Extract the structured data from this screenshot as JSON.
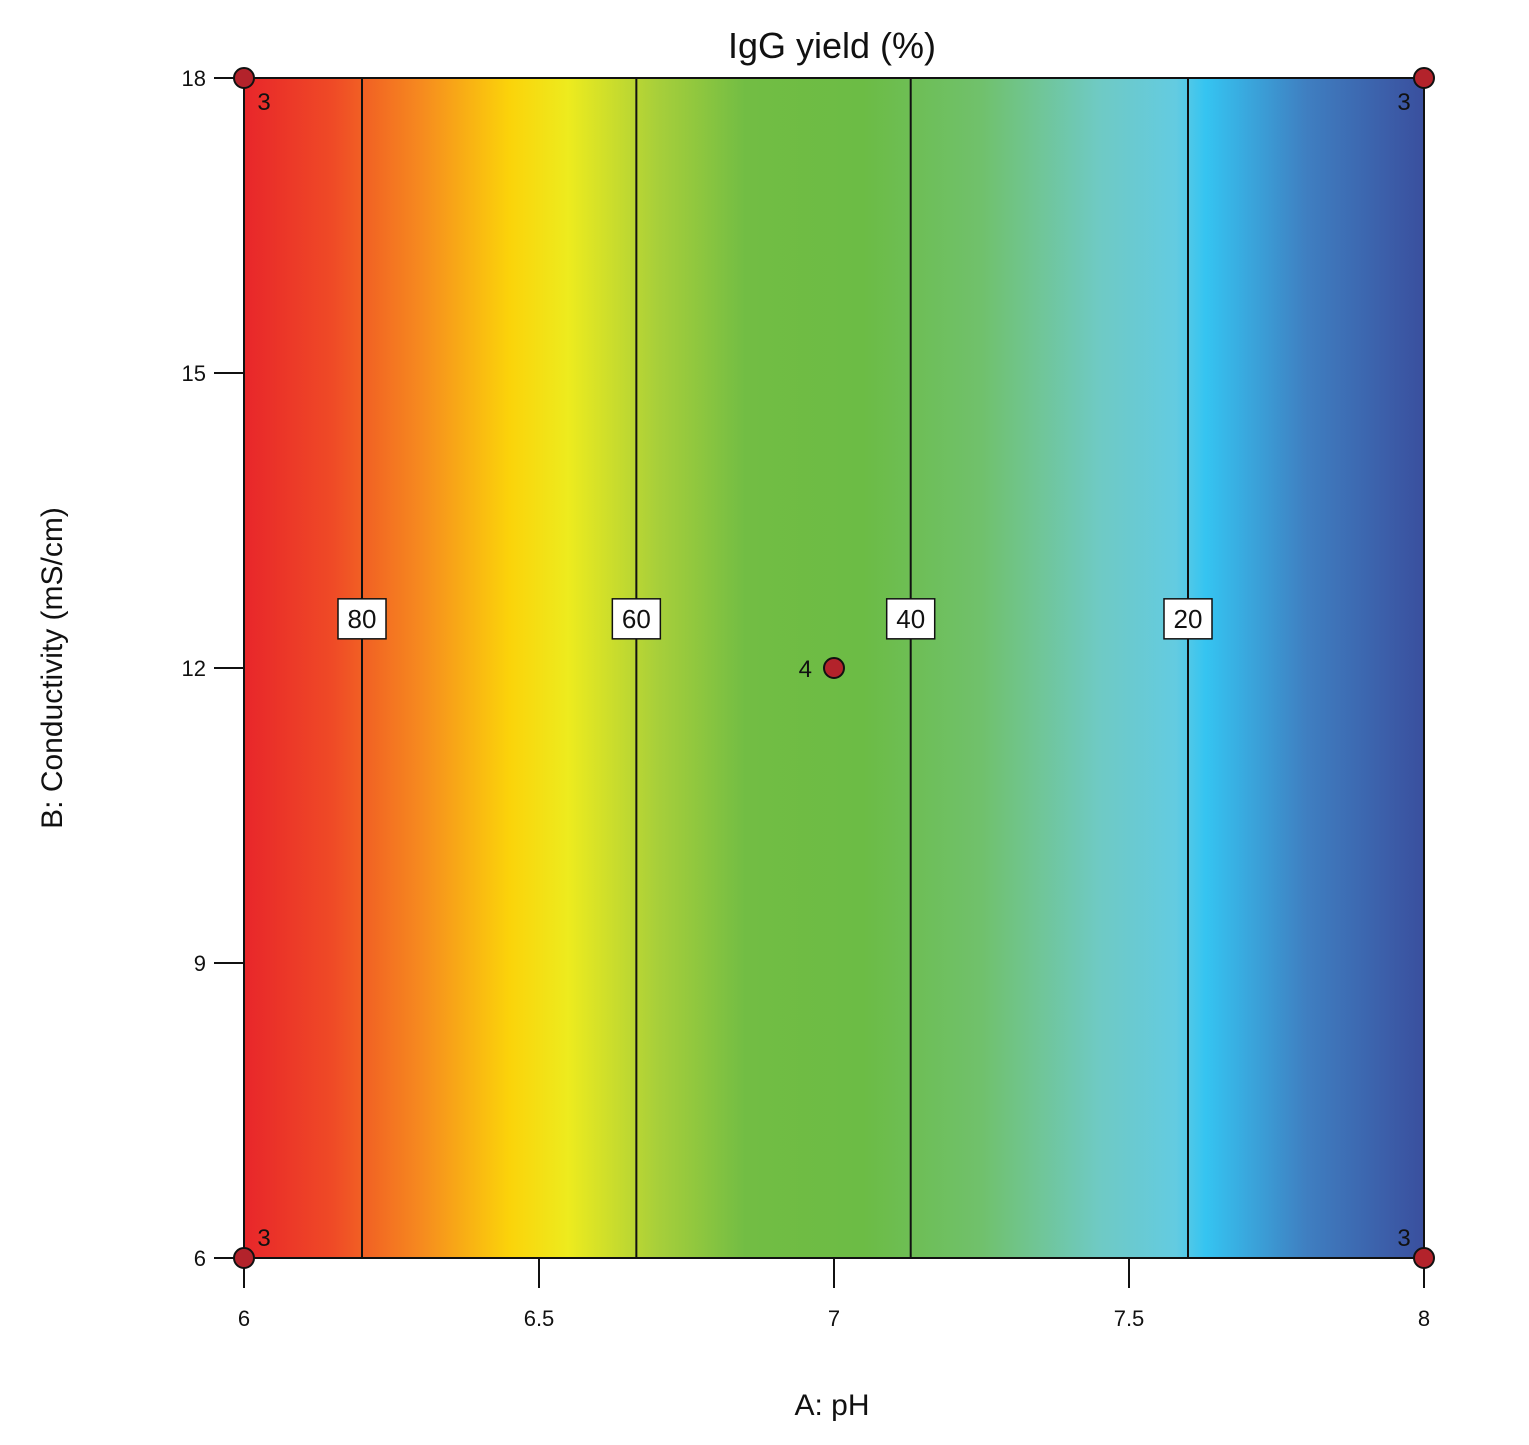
{
  "chart_data": {
    "type": "heatmap",
    "title": "IgG yield (%)",
    "xlabel": "A: pH",
    "ylabel": "B: Conductivity (mS/cm)",
    "xlim": [
      6,
      8
    ],
    "ylim": [
      6,
      18
    ],
    "x_ticks": [
      "6",
      "6.5",
      "7",
      "7.5",
      "8"
    ],
    "y_ticks": [
      "6",
      "9",
      "12",
      "15",
      "18"
    ],
    "contour_lines": [
      {
        "level": "80",
        "x": 6.2
      },
      {
        "level": "60",
        "x": 6.665
      },
      {
        "level": "40",
        "x": 7.13
      },
      {
        "level": "20",
        "x": 7.6
      }
    ],
    "contour_label_y": 12.5,
    "color_gradient": [
      {
        "x": 6.0,
        "color": "#e8262a"
      },
      {
        "x": 6.15,
        "color": "#ef4a26"
      },
      {
        "x": 6.3,
        "color": "#f68a1f"
      },
      {
        "x": 6.45,
        "color": "#fbd30a"
      },
      {
        "x": 6.55,
        "color": "#edeb1e"
      },
      {
        "x": 6.7,
        "color": "#a8cf3a"
      },
      {
        "x": 6.85,
        "color": "#72bd44"
      },
      {
        "x": 7.05,
        "color": "#6cbc45"
      },
      {
        "x": 7.25,
        "color": "#70c16c"
      },
      {
        "x": 7.45,
        "color": "#6fcac4"
      },
      {
        "x": 7.58,
        "color": "#63cbe1"
      },
      {
        "x": 7.63,
        "color": "#35c4f1"
      },
      {
        "x": 7.8,
        "color": "#3f7fc1"
      },
      {
        "x": 8.0,
        "color": "#3a4f9e"
      }
    ],
    "design_points": [
      {
        "x": 6,
        "y": 18,
        "replicates": "3",
        "label_pos": "below-right"
      },
      {
        "x": 8,
        "y": 18,
        "replicates": "3",
        "label_pos": "below-left"
      },
      {
        "x": 6,
        "y": 6,
        "replicates": "3",
        "label_pos": "above-right"
      },
      {
        "x": 8,
        "y": 6,
        "replicates": "3",
        "label_pos": "above-left"
      },
      {
        "x": 7,
        "y": 12,
        "replicates": "4",
        "label_pos": "left"
      }
    ],
    "point_color": "#b3232b",
    "grid": false
  }
}
